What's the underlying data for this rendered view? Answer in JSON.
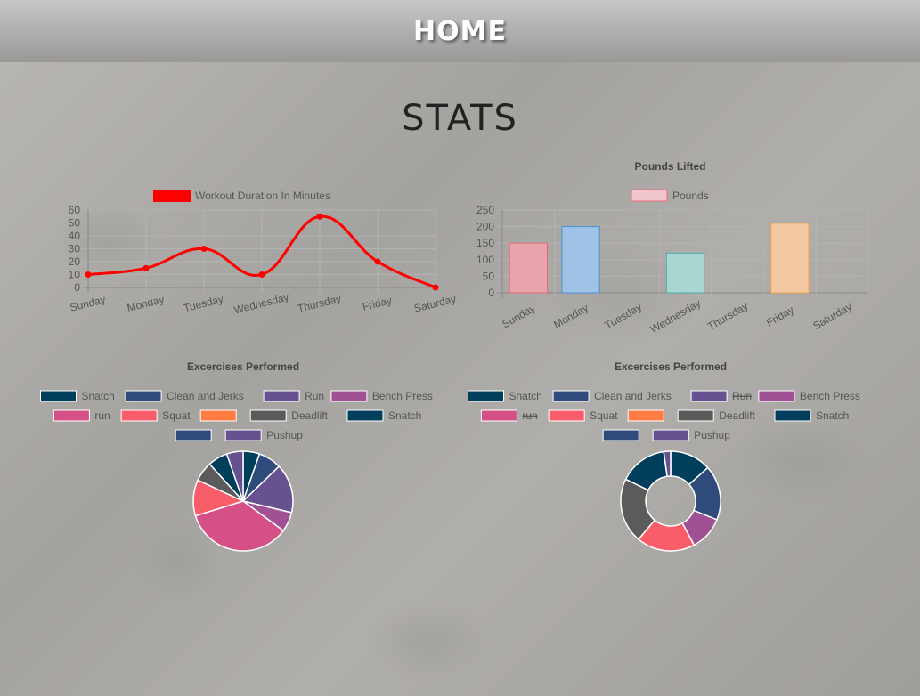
{
  "header": {
    "title": "Home"
  },
  "page": {
    "title": "Stats"
  },
  "chart_data": [
    {
      "type": "line",
      "title": "",
      "series": [
        {
          "name": "Workout Duration In Minutes",
          "color": "#ff0000",
          "values": [
            10,
            15,
            30,
            10,
            55,
            20,
            0
          ]
        }
      ],
      "categories": [
        "Sunday",
        "Monday",
        "Tuesday",
        "Wednesday",
        "Thursday",
        "Friday",
        "Saturday"
      ],
      "yticks": [
        0,
        10,
        20,
        30,
        40,
        50,
        60
      ],
      "ylim": [
        0,
        60
      ],
      "grid": true,
      "legend": "top"
    },
    {
      "type": "bar",
      "title": "Pounds Lifted",
      "series": [
        {
          "name": "Pounds",
          "values": [
            150,
            200,
            null,
            120,
            null,
            210,
            null
          ]
        }
      ],
      "categories": [
        "Sunday",
        "Monday",
        "Tuesday",
        "Wednesday",
        "Thursday",
        "Friday",
        "Saturday"
      ],
      "bar_colors": [
        "#e8a4ac",
        "#9ec3e6",
        "#f2b8c6",
        "#a8d6d0",
        "#e0c9e6",
        "#f3c7a0",
        "#cfcfcf"
      ],
      "bar_borders": [
        "#e86a78",
        "#4a90d9",
        "#e86a78",
        "#4ab0a8",
        "#9a70c0",
        "#f0a050",
        "#aaaaaa"
      ],
      "yticks": [
        0,
        50,
        100,
        150,
        200,
        250
      ],
      "ylim": [
        0,
        250
      ],
      "grid": true,
      "legend": "top"
    },
    {
      "type": "pie",
      "title": "Excercises Performed",
      "legend_rows": [
        [
          {
            "label": "Snatch",
            "color": "#003f5c"
          },
          {
            "label": "Clean and Jerks",
            "color": "#2f4b7c"
          },
          {
            "label": "Run",
            "color": "#665191"
          },
          {
            "label": "Bench Press",
            "color": "#a05195"
          }
        ],
        [
          {
            "label": "run",
            "color": "#d45087"
          },
          {
            "label": "Squat",
            "color": "#f95d6a"
          },
          {
            "label": "",
            "color": "#ff7c43"
          },
          {
            "label": "Deadlift",
            "color": "#5b5b5b"
          },
          {
            "label": "Snatch",
            "color": "#003f5c"
          }
        ],
        [
          {
            "label": "",
            "color": "#2f4b7c"
          },
          {
            "label": "Pushup",
            "color": "#665191"
          }
        ]
      ],
      "slices": [
        {
          "label": "Snatch",
          "value": 5,
          "color": "#003f5c"
        },
        {
          "label": "Clean and Jerks",
          "value": 7,
          "color": "#2f4b7c"
        },
        {
          "label": "Run",
          "value": 15,
          "color": "#665191"
        },
        {
          "label": "Bench Press",
          "value": 6,
          "color": "#a05195"
        },
        {
          "label": "run",
          "value": 33,
          "color": "#d45087"
        },
        {
          "label": "Squat",
          "value": 11,
          "color": "#f95d6a"
        },
        {
          "label": "Deadlift",
          "value": 6,
          "color": "#5b5b5b"
        },
        {
          "label": "Snatch",
          "value": 6,
          "color": "#003f5c"
        },
        {
          "label": "Pushup",
          "value": 5,
          "color": "#665191"
        }
      ],
      "legend": "top"
    },
    {
      "type": "doughnut",
      "title": "Excercises Performed",
      "legend_rows": [
        [
          {
            "label": "Snatch",
            "color": "#003f5c"
          },
          {
            "label": "Clean and Jerks",
            "color": "#2f4b7c"
          },
          {
            "label": "Run",
            "color": "#665191",
            "hidden": true
          },
          {
            "label": "Bench Press",
            "color": "#a05195"
          }
        ],
        [
          {
            "label": "run",
            "color": "#d45087",
            "hidden": true
          },
          {
            "label": "Squat",
            "color": "#f95d6a"
          },
          {
            "label": "",
            "color": "#ff7c43"
          },
          {
            "label": "Deadlift",
            "color": "#5b5b5b"
          },
          {
            "label": "Snatch",
            "color": "#003f5c"
          }
        ],
        [
          {
            "label": "",
            "color": "#2f4b7c"
          },
          {
            "label": "Pushup",
            "color": "#665191"
          }
        ]
      ],
      "slices": [
        {
          "label": "Snatch",
          "value": 12,
          "color": "#003f5c"
        },
        {
          "label": "Clean and Jerks",
          "value": 16,
          "color": "#2f4b7c"
        },
        {
          "label": "Bench Press",
          "value": 10,
          "color": "#a05195"
        },
        {
          "label": "Squat",
          "value": 17,
          "color": "#f95d6a"
        },
        {
          "label": "Deadlift",
          "value": 19,
          "color": "#5b5b5b"
        },
        {
          "label": "Snatch",
          "value": 14,
          "color": "#003f5c"
        },
        {
          "label": "Pushup",
          "value": 2,
          "color": "#665191"
        }
      ],
      "legend": "top"
    }
  ]
}
